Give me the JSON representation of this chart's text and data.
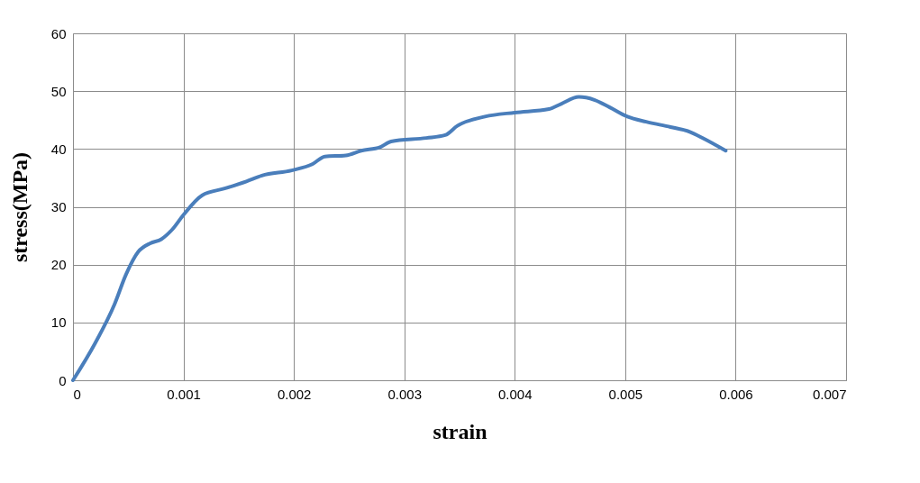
{
  "chart_data": {
    "type": "line",
    "xlabel": "strain",
    "ylabel": "stress(MPa)",
    "x": [
      0,
      0.0002,
      0.000375,
      0.00048,
      0.00059,
      0.0007,
      0.0008,
      0.0009,
      0.001,
      0.00117,
      0.00138,
      0.00157,
      0.00171,
      0.00198,
      0.00217,
      0.00228,
      0.00247,
      0.00261,
      0.00278,
      0.00288,
      0.0032,
      0.00337,
      0.00348,
      0.00373,
      0.004,
      0.00431,
      0.00442,
      0.00458,
      0.00472,
      0.00486,
      0.00502,
      0.00519,
      0.00541,
      0.00558,
      0.00571,
      0.00591
    ],
    "series": [
      {
        "color": "#4a7ebb",
        "values": [
          0,
          6.4,
          13.1,
          18.3,
          22.2,
          23.7,
          24.4,
          26.1,
          28.6,
          32,
          33.2,
          34.4,
          35.4,
          36.3,
          37.4,
          38.7,
          38.9,
          39.7,
          40.3,
          41.3,
          41.9,
          42.4,
          44.0,
          45.6,
          46.3,
          46.9,
          47.8,
          49.0,
          48.5,
          47.2,
          45.6,
          44.7,
          43.8,
          43.0,
          41.8,
          39.7
        ]
      }
    ],
    "xlim": [
      0,
      0.007
    ],
    "xticks": [
      0,
      0.001,
      0.002,
      0.003,
      0.004,
      0.005,
      0.006,
      0.007
    ],
    "ylim": [
      0,
      60
    ],
    "yticks": [
      0,
      10,
      20,
      30,
      40,
      50,
      60
    ],
    "grid": true,
    "legend": false,
    "marker": "none",
    "line_style": "solid"
  }
}
